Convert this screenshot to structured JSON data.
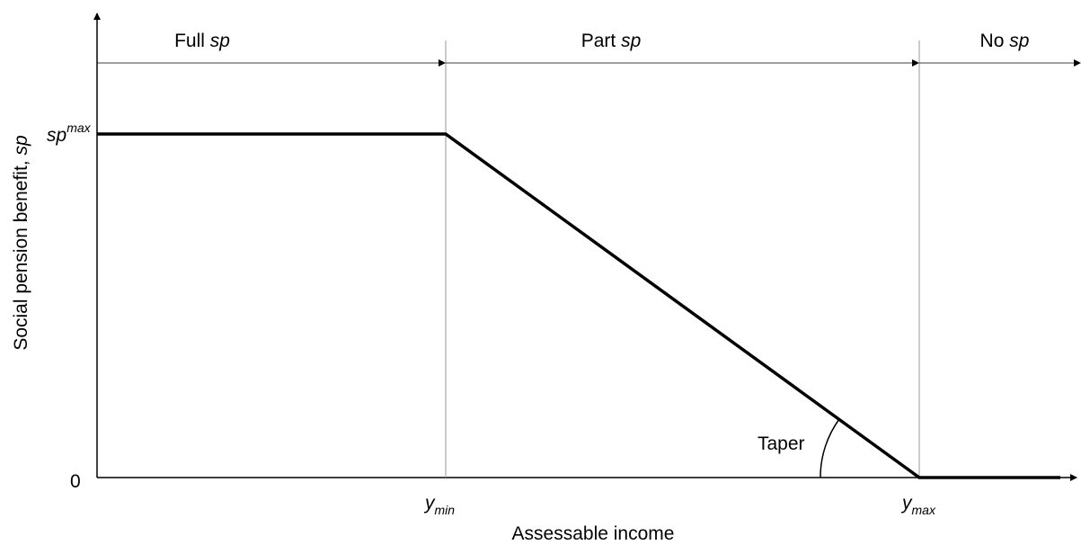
{
  "regions": [
    {
      "label": "Full",
      "symbol": "sp"
    },
    {
      "label": "Part",
      "symbol": "sp"
    },
    {
      "label": "No",
      "symbol": "sp"
    }
  ],
  "y_axis": {
    "label": "Social pension benefit,",
    "symbol": "sp",
    "top": {
      "base": "sp",
      "sup": "max"
    },
    "bottom": "0"
  },
  "x_axis": {
    "label": "Assessable income",
    "min": {
      "base": "y",
      "sub": "min"
    },
    "max": {
      "base": "y",
      "sub": "max"
    }
  },
  "annotation": "Taper"
}
